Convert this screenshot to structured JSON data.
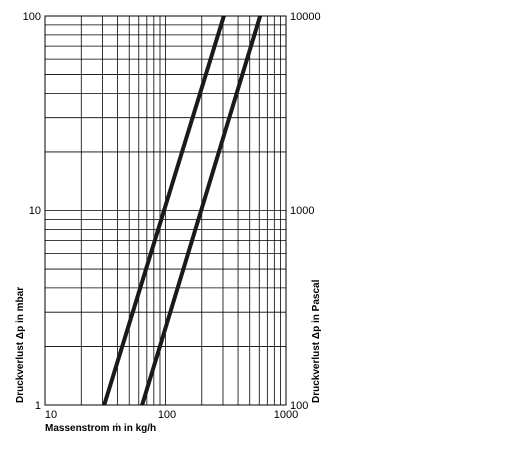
{
  "chart_data": {
    "type": "line",
    "title": "",
    "xlabel": "Massenstrom ṁ in kg/h",
    "ylabel": "Druckverlust Δp in mbar",
    "ylabel_right": "Druckverlust Δp in Pascal",
    "x_scale": "log",
    "y_scale": "log",
    "xlim": [
      10,
      1000
    ],
    "ylim": [
      1,
      100
    ],
    "ylim_right": [
      100,
      10000
    ],
    "grid": "on",
    "x_ticks": [
      "10",
      "100",
      "1000"
    ],
    "y_ticks": [
      "1",
      "10",
      "100"
    ],
    "y_ticks_right": [
      "100",
      "1000",
      "10000"
    ],
    "series": [
      {
        "x": [
          31,
          305
        ],
        "y": [
          1,
          100
        ]
      },
      {
        "x": [
          64,
          610
        ],
        "y": [
          1,
          100
        ]
      }
    ],
    "line_color": "#1a1a1a"
  }
}
